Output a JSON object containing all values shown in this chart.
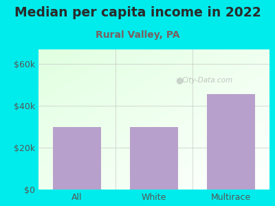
{
  "title": "Median per capita income in 2022",
  "subtitle": "Rural Valley, PA",
  "categories": [
    "All",
    "White",
    "Multirace"
  ],
  "values": [
    30000,
    30000,
    45500
  ],
  "bar_color": "#b8a0cc",
  "yticks": [
    0,
    20000,
    40000,
    60000
  ],
  "ytick_labels": [
    "$0",
    "$20k",
    "$40k",
    "$60k"
  ],
  "ylim": [
    0,
    67000
  ],
  "bg_color": "#00ecec",
  "title_color": "#2a2a2a",
  "subtitle_color": "#7a6060",
  "watermark": "City-Data.com",
  "title_fontsize": 13.5,
  "subtitle_fontsize": 10
}
